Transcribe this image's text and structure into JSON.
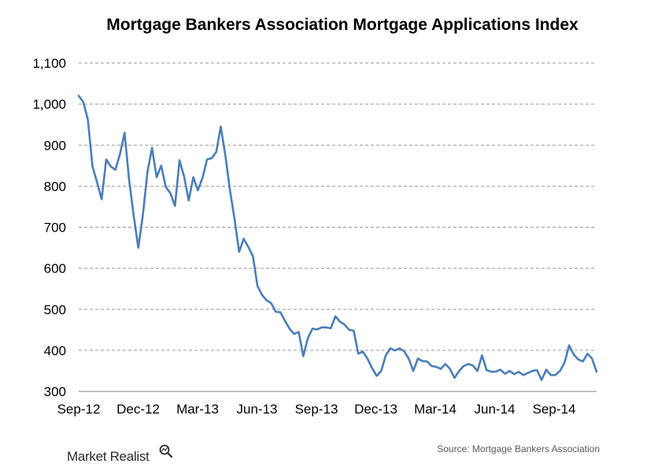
{
  "chart_data": {
    "type": "line",
    "title": "Mortgage Bankers Association Mortgage Applications Index",
    "xlabel": "",
    "ylabel": "",
    "ylim": [
      300,
      1100
    ],
    "yticks": [
      "300",
      "400",
      "500",
      "600",
      "700",
      "800",
      "900",
      "1,000",
      "1,100"
    ],
    "xticks": [
      "Sep-12",
      "Dec-12",
      "Mar-13",
      "Jun-13",
      "Sep-13",
      "Dec-13",
      "Mar-14",
      "Jun-14",
      "Sep-14"
    ],
    "grid": true,
    "color": "#4a7ebb",
    "series": [
      {
        "values": [
          1020,
          1005,
          962,
          848,
          810,
          768,
          865,
          848,
          840,
          878,
          930,
          815,
          728,
          650,
          730,
          835,
          893,
          822,
          850,
          798,
          783,
          752,
          863,
          823,
          765,
          822,
          790,
          820,
          865,
          868,
          883,
          945,
          875,
          790,
          720,
          640,
          672,
          652,
          630,
          557,
          535,
          522,
          515,
          494,
          493,
          472,
          453,
          440,
          445,
          386,
          430,
          453,
          451,
          456,
          456,
          454,
          483,
          470,
          463,
          450,
          448,
          392,
          397,
          380,
          357,
          338,
          350,
          388,
          405,
          400,
          405,
          398,
          380,
          350,
          380,
          374,
          373,
          362,
          360,
          355,
          367,
          355,
          333,
          350,
          362,
          367,
          363,
          350,
          388,
          352,
          348,
          348,
          353,
          343,
          350,
          342,
          348,
          340,
          345,
          350,
          352,
          328,
          353,
          340,
          340,
          350,
          370,
          412,
          390,
          378,
          373,
          392,
          380,
          348
        ]
      }
    ]
  },
  "source_text": "Source: Mortgage Bankers Association",
  "logo_text": "Market Realist"
}
